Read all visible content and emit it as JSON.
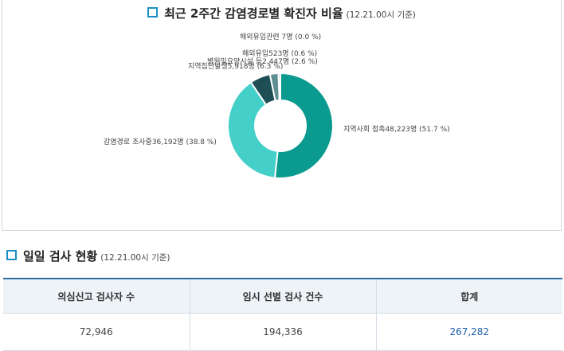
{
  "chart": {
    "title": "최근 2주간 감염경로별 확진자 비율",
    "subtitle": "(12.21.00시 기준)"
  },
  "chart_data": {
    "type": "pie",
    "donut": true,
    "slices": [
      {
        "label": "지역사회 접촉48,223명 (51.7 %)",
        "value": 51.7,
        "color": "#0a9a8f"
      },
      {
        "label": "감염경로 조사중36,192명 (38.8 %)",
        "value": 38.8,
        "color": "#45cfc9"
      },
      {
        "label": "지역집단발생5,918명 (6.3 %)",
        "value": 6.3,
        "color": "#1d4f55"
      },
      {
        "label": "병원및요양시설 등2,447명 (2.6 %)",
        "value": 2.6,
        "color": "#5e8f92"
      },
      {
        "label": "해외유입523명 (0.6 %)",
        "value": 0.6,
        "color": "#9bb8ba"
      },
      {
        "label": "해외유입관련 7명 (0.0 %)",
        "value": 0.0,
        "color": "#c7d7d8"
      }
    ]
  },
  "section": {
    "title": "일일 검사 현황",
    "subtitle": "(12.21.00시 기준)"
  },
  "table": {
    "headers": [
      "의심신고 검사자 수",
      "임시 선별 검사 건수",
      "합계"
    ],
    "row": [
      "72,946",
      "194,336",
      "267,282"
    ]
  }
}
